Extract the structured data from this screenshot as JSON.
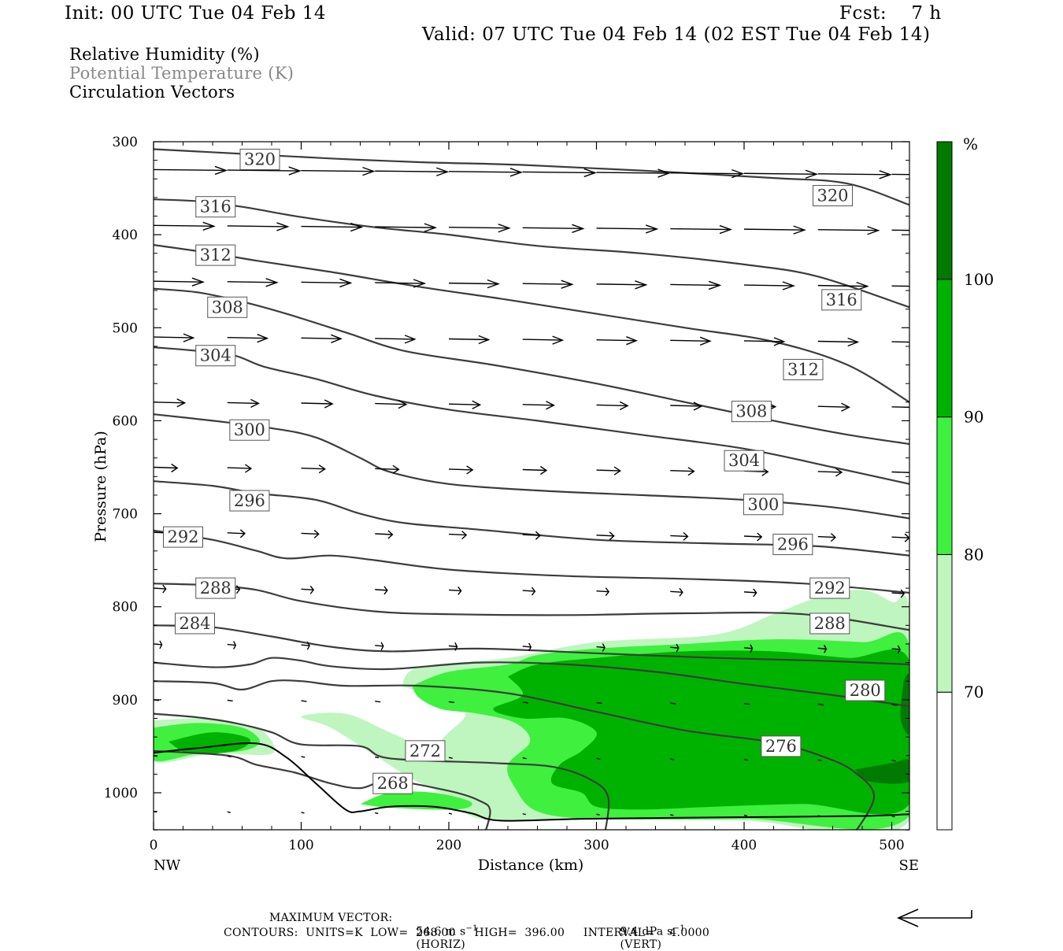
{
  "header": {
    "init": "Init: 00 UTC Tue 04 Feb 14",
    "fcst": "Fcst:    7 h",
    "valid": "Valid: 07 UTC Tue 04 Feb 14 (02 EST Tue 04 Feb 14)"
  },
  "fields": {
    "rh": "Relative Humidity (%)",
    "theta": "Potential Temperature (K)",
    "vectors": "Circulation Vectors"
  },
  "colors": {
    "rh_70_80": "#bff5bf",
    "rh_80_90": "#3ff03f",
    "rh_90_100": "#00b200",
    "rh_100": "#007a00",
    "theta_line": "#3c3c3c",
    "label_gray": "#888888"
  },
  "chart_data": {
    "type": "cross-section",
    "xlabel": "Distance (km)",
    "ylabel": "Pressure (hPa)",
    "xlim": [
      0,
      512
    ],
    "ylim": [
      1040,
      300
    ],
    "x_ticks": [
      0,
      100,
      200,
      300,
      400,
      500
    ],
    "y_ticks": [
      300,
      400,
      500,
      600,
      700,
      800,
      900,
      1000
    ],
    "x_end_labels": {
      "left": "NW",
      "right": "SE"
    },
    "colorbar": {
      "unit": "%",
      "levels": [
        70,
        80,
        90,
        100
      ],
      "colors": [
        "#ffffff",
        "#bff5bf",
        "#3ff03f",
        "#00b200",
        "#007a00"
      ]
    },
    "theta_contours": [
      {
        "value": 320,
        "points": [
          [
            0,
            308
          ],
          [
            60,
            313
          ],
          [
            120,
            318
          ],
          [
            180,
            322
          ],
          [
            250,
            325
          ],
          [
            330,
            331
          ],
          [
            420,
            339
          ],
          [
            470,
            345
          ],
          [
            512,
            368
          ]
        ],
        "label_at": [
          [
            72,
            319
          ],
          [
            460,
            358
          ]
        ]
      },
      {
        "value": 316,
        "points": [
          [
            0,
            362
          ],
          [
            30,
            364
          ],
          [
            60,
            370
          ],
          [
            100,
            381
          ],
          [
            150,
            392
          ],
          [
            200,
            400
          ],
          [
            260,
            412
          ],
          [
            330,
            420
          ],
          [
            400,
            432
          ],
          [
            450,
            445
          ],
          [
            512,
            478
          ]
        ],
        "label_at": [
          [
            42,
            370
          ],
          [
            466,
            470
          ]
        ]
      },
      {
        "value": 312,
        "points": [
          [
            0,
            411
          ],
          [
            40,
            420
          ],
          [
            70,
            428
          ],
          [
            120,
            440
          ],
          [
            180,
            456
          ],
          [
            240,
            470
          ],
          [
            300,
            485
          ],
          [
            360,
            500
          ],
          [
            420,
            515
          ],
          [
            470,
            540
          ],
          [
            512,
            580
          ]
        ],
        "label_at": [
          [
            42,
            422
          ],
          [
            440,
            545
          ]
        ]
      },
      {
        "value": 308,
        "points": [
          [
            0,
            458
          ],
          [
            30,
            462
          ],
          [
            60,
            472
          ],
          [
            90,
            485
          ],
          [
            130,
            505
          ],
          [
            170,
            525
          ],
          [
            230,
            540
          ],
          [
            300,
            560
          ],
          [
            360,
            580
          ],
          [
            420,
            600
          ],
          [
            470,
            615
          ],
          [
            512,
            625
          ]
        ],
        "label_at": [
          [
            50,
            478
          ],
          [
            405,
            590
          ]
        ]
      },
      {
        "value": 304,
        "points": [
          [
            0,
            521
          ],
          [
            30,
            525
          ],
          [
            55,
            530
          ],
          [
            75,
            542
          ],
          [
            110,
            555
          ],
          [
            150,
            573
          ],
          [
            200,
            588
          ],
          [
            260,
            600
          ],
          [
            330,
            615
          ],
          [
            400,
            630
          ],
          [
            460,
            650
          ],
          [
            512,
            668
          ]
        ],
        "label_at": [
          [
            42,
            530
          ],
          [
            400,
            643
          ]
        ]
      },
      {
        "value": 300,
        "points": [
          [
            0,
            593
          ],
          [
            40,
            600
          ],
          [
            80,
            608
          ],
          [
            110,
            618
          ],
          [
            140,
            640
          ],
          [
            160,
            655
          ],
          [
            200,
            668
          ],
          [
            260,
            675
          ],
          [
            330,
            680
          ],
          [
            400,
            685
          ],
          [
            460,
            693
          ],
          [
            512,
            705
          ]
        ],
        "label_at": [
          [
            65,
            610
          ],
          [
            413,
            690
          ]
        ]
      },
      {
        "value": 296,
        "points": [
          [
            0,
            665
          ],
          [
            40,
            670
          ],
          [
            70,
            678
          ],
          [
            110,
            685
          ],
          [
            140,
            700
          ],
          [
            170,
            710
          ],
          [
            220,
            717
          ],
          [
            300,
            728
          ],
          [
            380,
            732
          ],
          [
            450,
            735
          ],
          [
            512,
            745
          ]
        ],
        "label_at": [
          [
            65,
            686
          ],
          [
            433,
            733
          ]
        ]
      },
      {
        "value": 292,
        "points": [
          [
            0,
            718
          ],
          [
            40,
            728
          ],
          [
            70,
            740
          ],
          [
            90,
            748
          ],
          [
            120,
            745
          ],
          [
            150,
            750
          ],
          [
            200,
            760
          ],
          [
            280,
            767
          ],
          [
            360,
            770
          ],
          [
            440,
            775
          ],
          [
            512,
            785
          ]
        ],
        "label_at": [
          [
            20,
            725
          ],
          [
            458,
            780
          ]
        ]
      },
      {
        "value": 288,
        "points": [
          [
            0,
            775
          ],
          [
            40,
            777
          ],
          [
            70,
            782
          ],
          [
            100,
            794
          ],
          [
            150,
            805
          ],
          [
            200,
            808
          ],
          [
            280,
            809
          ],
          [
            360,
            807
          ],
          [
            440,
            808
          ],
          [
            512,
            825
          ]
        ],
        "label_at": [
          [
            42,
            780
          ],
          [
            458,
            818
          ]
        ]
      },
      {
        "value": 284,
        "points": [
          [
            0,
            820
          ],
          [
            40,
            822
          ],
          [
            80,
            832
          ],
          [
            120,
            843
          ],
          [
            160,
            848
          ],
          [
            220,
            845
          ],
          [
            300,
            850
          ],
          [
            380,
            855
          ],
          [
            450,
            858
          ],
          [
            512,
            862
          ]
        ],
        "label_at": [
          [
            28,
            818
          ]
        ]
      },
      {
        "value": 280,
        "points": [
          [
            0,
            860
          ],
          [
            40,
            865
          ],
          [
            65,
            862
          ],
          [
            80,
            855
          ],
          [
            100,
            858
          ],
          [
            120,
            864
          ],
          [
            160,
            867
          ],
          [
            220,
            860
          ],
          [
            280,
            862
          ],
          [
            340,
            870
          ],
          [
            400,
            883
          ],
          [
            460,
            895
          ],
          [
            512,
            907
          ]
        ],
        "label_at": [
          [
            482,
            890
          ]
        ]
      },
      {
        "value": 276,
        "points": [
          [
            0,
            880
          ],
          [
            40,
            882
          ],
          [
            60,
            889
          ],
          [
            80,
            880
          ],
          [
            100,
            880
          ],
          [
            130,
            885
          ],
          [
            180,
            885
          ],
          [
            240,
            893
          ],
          [
            300,
            913
          ],
          [
            360,
            933
          ],
          [
            420,
            946
          ],
          [
            455,
            962
          ],
          [
            475,
            978
          ],
          [
            488,
            1005
          ],
          [
            472,
            1050
          ]
        ],
        "label_at": [
          [
            425,
            950
          ]
        ]
      },
      {
        "value": 272,
        "points": [
          [
            0,
            915
          ],
          [
            30,
            919
          ],
          [
            55,
            925
          ],
          [
            80,
            935
          ],
          [
            100,
            948
          ],
          [
            140,
            950
          ],
          [
            160,
            963
          ],
          [
            230,
            968
          ],
          [
            270,
            972
          ],
          [
            295,
            985
          ],
          [
            308,
            1005
          ],
          [
            305,
            1050
          ]
        ],
        "label_at": [
          [
            184,
            955
          ]
        ]
      },
      {
        "value": 268,
        "points": [
          [
            0,
            955
          ],
          [
            50,
            960
          ],
          [
            70,
            970
          ],
          [
            95,
            978
          ],
          [
            120,
            990
          ],
          [
            140,
            995
          ],
          [
            160,
            987
          ],
          [
            200,
            998
          ],
          [
            220,
            1008
          ],
          [
            228,
            1020
          ],
          [
            222,
            1055
          ]
        ],
        "label_at": [
          [
            162,
            990
          ]
        ]
      }
    ],
    "terrain_hPa": [
      [
        0,
        957
      ],
      [
        30,
        952
      ],
      [
        70,
        947
      ],
      [
        90,
        962
      ],
      [
        110,
        990
      ],
      [
        130,
        1018
      ],
      [
        140,
        1020
      ],
      [
        160,
        1015
      ],
      [
        190,
        1015
      ],
      [
        215,
        1022
      ],
      [
        235,
        1030
      ],
      [
        290,
        1028
      ],
      [
        350,
        1027
      ],
      [
        420,
        1026
      ],
      [
        480,
        1025
      ],
      [
        512,
        1023
      ]
    ],
    "vector_rows_hPa": [
      330,
      390,
      450,
      510,
      580,
      650,
      720,
      780,
      840,
      900,
      960,
      1020
    ],
    "vector_cols_km": [
      0,
      50,
      100,
      150,
      200,
      250,
      300,
      350,
      400,
      450,
      500
    ]
  },
  "footer": {
    "max_label": "MAXIMUM VECTOR:",
    "max_horiz": "54.6 m s",
    "max_horiz_exp": "−1",
    "max_horiz_tag": "(HORIZ)",
    "max_vert": "9.4 dPa s",
    "max_vert_exp": "−1",
    "max_vert_tag": "(VERT)",
    "contours": "CONTOURS:  UNITS=K  LOW=  268.00     HIGH=  396.00     INTERVAL=    4.0000"
  }
}
